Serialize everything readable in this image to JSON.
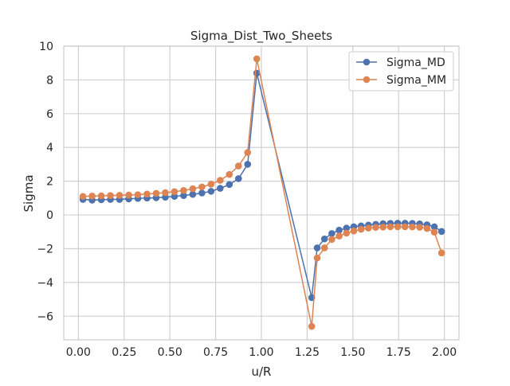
{
  "chart_data": {
    "type": "line",
    "title": "Sigma_Dist_Two_Sheets",
    "xlabel": "u/R",
    "ylabel": "Sigma",
    "xlim": [
      -0.08,
      2.08
    ],
    "ylim": [
      -7.4,
      10.0
    ],
    "xticks": [
      0.0,
      0.25,
      0.5,
      0.75,
      1.0,
      1.25,
      1.5,
      1.75,
      2.0
    ],
    "xtick_labels": [
      "0.00",
      "0.25",
      "0.50",
      "0.75",
      "1.00",
      "1.25",
      "1.50",
      "1.75",
      "2.00"
    ],
    "yticks": [
      -6,
      -4,
      -2,
      0,
      2,
      4,
      6,
      8,
      10
    ],
    "ytick_labels": [
      "−6",
      "−4",
      "−2",
      "0",
      "2",
      "4",
      "6",
      "8",
      "10"
    ],
    "grid": true,
    "legend_position": "upper right",
    "series": [
      {
        "name": "Sigma_MD",
        "color": "#4c72b0",
        "x": [
          0.025,
          0.075,
          0.125,
          0.175,
          0.225,
          0.275,
          0.325,
          0.375,
          0.425,
          0.475,
          0.525,
          0.575,
          0.625,
          0.675,
          0.725,
          0.775,
          0.825,
          0.875,
          0.925,
          0.975,
          1.275,
          1.305,
          1.345,
          1.385,
          1.425,
          1.465,
          1.505,
          1.545,
          1.585,
          1.625,
          1.665,
          1.705,
          1.745,
          1.785,
          1.825,
          1.865,
          1.905,
          1.945,
          1.985
        ],
        "y": [
          0.92,
          0.88,
          0.9,
          0.92,
          0.92,
          0.95,
          0.98,
          1.0,
          1.02,
          1.05,
          1.1,
          1.15,
          1.22,
          1.3,
          1.4,
          1.58,
          1.8,
          2.15,
          3.0,
          8.4,
          -4.9,
          -1.95,
          -1.42,
          -1.1,
          -0.9,
          -0.78,
          -0.7,
          -0.65,
          -0.6,
          -0.56,
          -0.52,
          -0.5,
          -0.49,
          -0.49,
          -0.5,
          -0.53,
          -0.58,
          -0.7,
          -0.98
        ]
      },
      {
        "name": "Sigma_MM",
        "color": "#dd8452",
        "x": [
          0.025,
          0.075,
          0.125,
          0.175,
          0.225,
          0.275,
          0.325,
          0.375,
          0.425,
          0.475,
          0.525,
          0.575,
          0.625,
          0.675,
          0.725,
          0.775,
          0.825,
          0.875,
          0.925,
          0.975,
          1.275,
          1.305,
          1.345,
          1.385,
          1.425,
          1.465,
          1.505,
          1.545,
          1.585,
          1.625,
          1.665,
          1.705,
          1.745,
          1.785,
          1.825,
          1.865,
          1.905,
          1.945,
          1.985
        ],
        "y": [
          1.1,
          1.12,
          1.13,
          1.15,
          1.16,
          1.18,
          1.2,
          1.24,
          1.28,
          1.32,
          1.38,
          1.45,
          1.55,
          1.66,
          1.82,
          2.05,
          2.4,
          2.9,
          3.7,
          9.25,
          -6.6,
          -2.55,
          -1.95,
          -1.45,
          -1.25,
          -1.08,
          -0.95,
          -0.85,
          -0.78,
          -0.74,
          -0.72,
          -0.7,
          -0.7,
          -0.7,
          -0.71,
          -0.73,
          -0.8,
          -1.02,
          -2.25
        ]
      }
    ]
  }
}
